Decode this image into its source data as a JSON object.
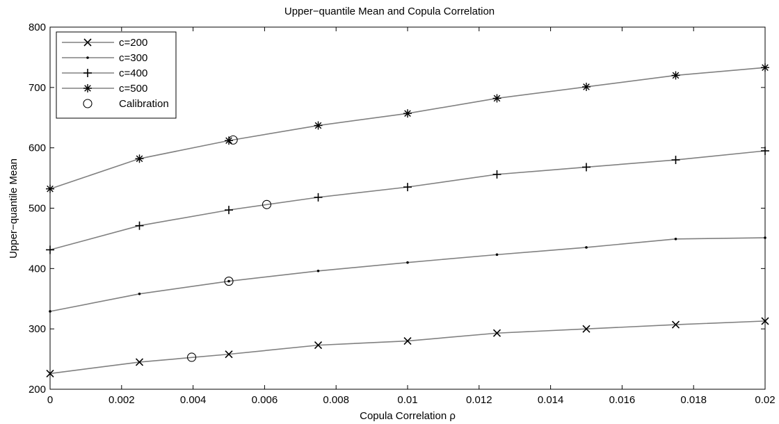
{
  "chart_data": {
    "type": "line",
    "title": "Upper−quantile Mean and Copula Correlation",
    "xlabel": "Copula Correlation ρ",
    "ylabel": "Upper−quantile Mean",
    "xlim": [
      0,
      0.02
    ],
    "ylim": [
      200,
      800
    ],
    "x_ticks": [
      0,
      0.002,
      0.004,
      0.006,
      0.008,
      0.01,
      0.012,
      0.014,
      0.016,
      0.018,
      0.02
    ],
    "x_tick_labels": [
      "0",
      "0.002",
      "0.004",
      "0.006",
      "0.008",
      "0.01",
      "0.012",
      "0.014",
      "0.016",
      "0.018",
      "0.02"
    ],
    "y_ticks": [
      200,
      300,
      400,
      500,
      600,
      700,
      800
    ],
    "y_tick_labels": [
      "200",
      "300",
      "400",
      "500",
      "600",
      "700",
      "800"
    ],
    "grid": false,
    "legend_position": "top-left",
    "line_color": "#808080",
    "marker_color": "#000000",
    "x": [
      0,
      0.0025,
      0.005,
      0.0075,
      0.01,
      0.0125,
      0.015,
      0.0175,
      0.02
    ],
    "series": [
      {
        "name": "c=200",
        "marker": "x",
        "values": [
          226,
          245,
          258,
          273,
          280,
          293,
          300,
          307,
          313
        ]
      },
      {
        "name": "c=300",
        "marker": "dot",
        "values": [
          329,
          358,
          379,
          396,
          410,
          423,
          435,
          449,
          451
        ]
      },
      {
        "name": "c=400",
        "marker": "plus",
        "values": [
          431,
          471,
          497,
          518,
          535,
          556,
          568,
          580,
          595
        ]
      },
      {
        "name": "c=500",
        "marker": "asterisk",
        "values": [
          532,
          582,
          612,
          637,
          657,
          682,
          701,
          720,
          733
        ]
      }
    ],
    "calibration": {
      "name": "Calibration",
      "marker": "circle",
      "points": [
        {
          "x": 0.00396,
          "y": 253
        },
        {
          "x": 0.005,
          "y": 379
        },
        {
          "x": 0.00606,
          "y": 506
        },
        {
          "x": 0.00512,
          "y": 613
        }
      ]
    }
  }
}
